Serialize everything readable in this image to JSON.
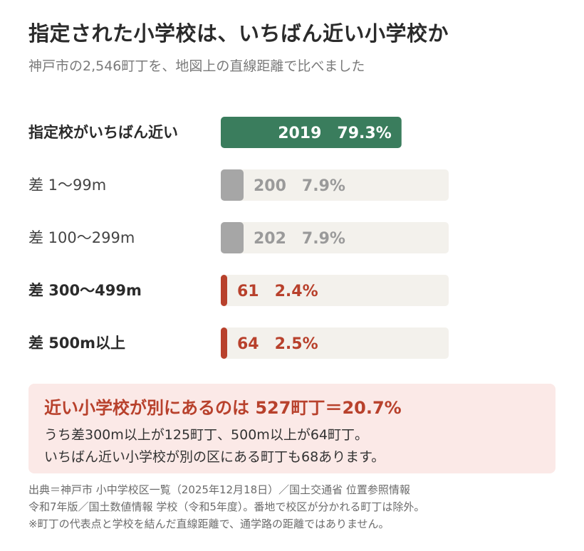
{
  "title": "指定された小学校は、いちばん近い小学校か",
  "subtitle": "神戸市の2,546町丁を、地図上の直線距離で比べました",
  "colors": {
    "designated": "#3a7d5d",
    "gray": "#a6a6a6",
    "red": "#b8412c",
    "track": "#f3f1ec",
    "callout_bg": "#fbe9e7"
  },
  "chart_data": {
    "type": "bar",
    "orientation": "horizontal",
    "categories": [
      "指定校がいちばん近い",
      "差 1〜99m",
      "差 100〜299m",
      "差 300〜499m",
      "差 500m以上"
    ],
    "values": [
      2019,
      200,
      202,
      61,
      64
    ],
    "percent_labels": [
      "79.3%",
      "7.9%",
      "7.9%",
      "2.4%",
      "2.5%"
    ],
    "percentages": [
      79.3,
      7.9,
      7.9,
      2.4,
      2.5
    ],
    "value_labels": [
      "2019",
      "200",
      "202",
      "61",
      "64"
    ],
    "bar_colors": [
      "designated",
      "gray",
      "gray",
      "red",
      "red"
    ],
    "label_bold": [
      true,
      false,
      false,
      true,
      true
    ],
    "xlim": [
      0,
      100
    ]
  },
  "callout": {
    "headline": "近い小学校が別にあるのは 527町丁＝20.7%",
    "line1": "うち差300m以上が125町丁、500m以上が64町丁。",
    "line2": "いちばん近い小学校が別の区にある町丁も68あります。"
  },
  "source": {
    "line1": "出典＝神戸市 小中学校区一覧（2025年12月18日）／国土交通省 位置参照情報",
    "line2": "令和7年版／国土数値情報 学校（令和5年度）。番地で校区が分かれる町丁は除外。",
    "line3": "※町丁の代表点と学校を結んだ直線距離で、通学路の距離ではありません。"
  }
}
